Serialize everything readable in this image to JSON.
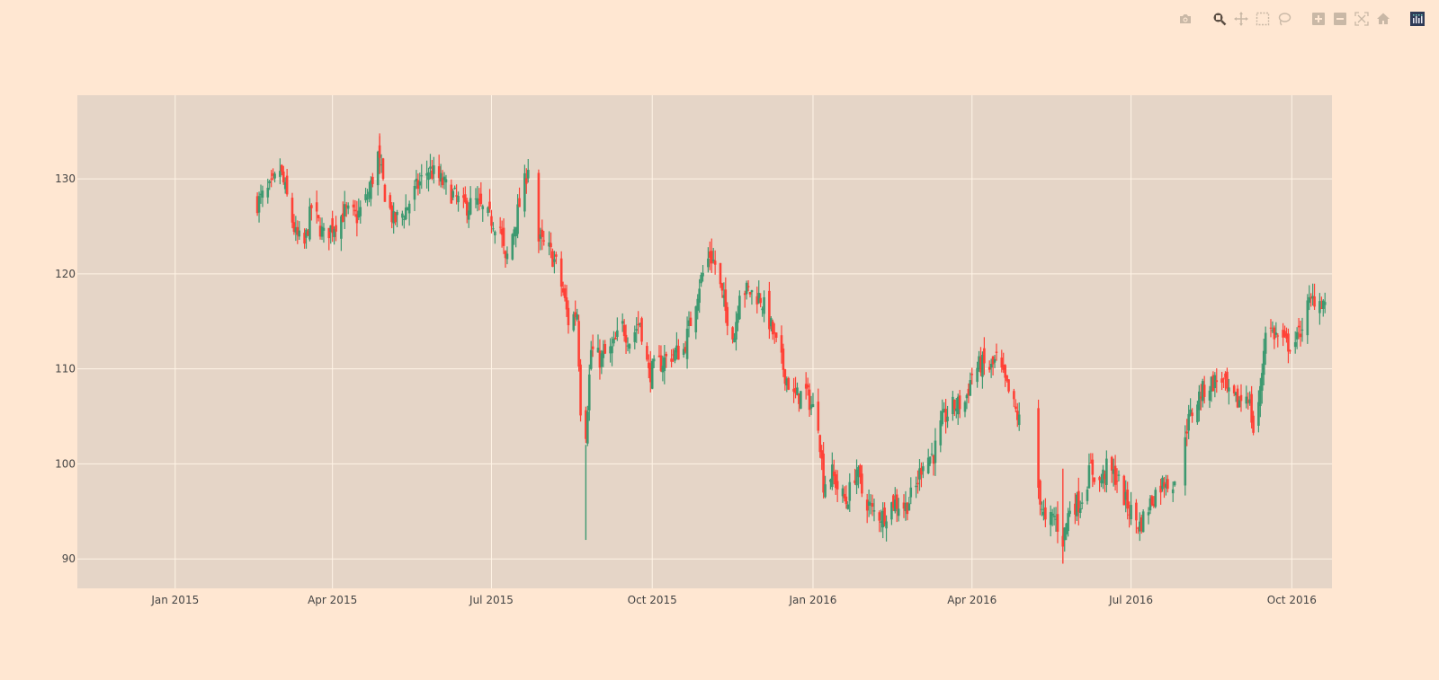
{
  "modebar": {
    "buttons": [
      {
        "name": "download-plot-png",
        "icon": "camera-icon",
        "active": false
      },
      {
        "name": "zoom",
        "icon": "zoom-icon",
        "active": true
      },
      {
        "name": "pan",
        "icon": "pan-icon",
        "active": false
      },
      {
        "name": "box-select",
        "icon": "box-select-icon",
        "active": false
      },
      {
        "name": "lasso-select",
        "icon": "lasso-icon",
        "active": false
      },
      {
        "name": "zoom-in",
        "icon": "zoom-in-icon",
        "active": false
      },
      {
        "name": "zoom-out",
        "icon": "zoom-out-icon",
        "active": false
      },
      {
        "name": "autoscale",
        "icon": "autoscale-icon",
        "active": false
      },
      {
        "name": "reset-axes",
        "icon": "home-icon",
        "active": false
      },
      {
        "name": "plotly-logo",
        "icon": "plotly-logo-icon",
        "active": false
      }
    ]
  },
  "colors": {
    "paper_bg": "#ffe7d2",
    "plot_bg": "#e5d5c7",
    "grid": "#fff4e6",
    "increasing": "#3D9970",
    "decreasing": "#FF4136",
    "modebar_icon": "#c9b8a6",
    "modebar_active": "#5b4e43",
    "logo_bg": "#2f3b57"
  },
  "chart_data": {
    "type": "candlestick",
    "title": "",
    "xlabel": "",
    "ylabel": "",
    "x_tick_labels": [
      "Jan 2015",
      "Apr 2015",
      "Jul 2015",
      "Oct 2015",
      "Jan 2016",
      "Apr 2016",
      "Jul 2016",
      "Oct 2016"
    ],
    "x_tick_dates": [
      "2015-01-01",
      "2015-04-01",
      "2015-07-01",
      "2015-10-01",
      "2016-01-01",
      "2016-04-01",
      "2016-07-01",
      "2016-10-01"
    ],
    "y_tick_labels": [
      "90",
      "100",
      "110",
      "120",
      "130"
    ],
    "y_ticks": [
      90,
      100,
      110,
      120,
      130
    ],
    "xlim": [
      "2014-11-06",
      "2016-10-24"
    ],
    "ylim": [
      86.9,
      138.8
    ],
    "grid": true,
    "legend": false,
    "increasing_color": "#3D9970",
    "decreasing_color": "#FF4136",
    "close_keyframes": [
      [
        "2015-02-17",
        127.5
      ],
      [
        "2015-02-25",
        129
      ],
      [
        "2015-03-02",
        131
      ],
      [
        "2015-03-06",
        128
      ],
      [
        "2015-03-11",
        124
      ],
      [
        "2015-03-16",
        123
      ],
      [
        "2015-03-20",
        127
      ],
      [
        "2015-03-27",
        124
      ],
      [
        "2015-04-01",
        125
      ],
      [
        "2015-04-08",
        126.5
      ],
      [
        "2015-04-15",
        126
      ],
      [
        "2015-04-22",
        128.5
      ],
      [
        "2015-04-27",
        132.5
      ],
      [
        "2015-05-01",
        128.5
      ],
      [
        "2015-05-06",
        125.5
      ],
      [
        "2015-05-12",
        126.5
      ],
      [
        "2015-05-19",
        129
      ],
      [
        "2015-05-26",
        131
      ],
      [
        "2015-06-01",
        130
      ],
      [
        "2015-06-08",
        128.5
      ],
      [
        "2015-06-15",
        127
      ],
      [
        "2015-06-22",
        127.5
      ],
      [
        "2015-06-29",
        126
      ],
      [
        "2015-07-06",
        125
      ],
      [
        "2015-07-09",
        121
      ],
      [
        "2015-07-14",
        125
      ],
      [
        "2015-07-20",
        129.5
      ],
      [
        "2015-07-22",
        131.5
      ],
      [
        "2015-07-28",
        123.5
      ],
      [
        "2015-08-03",
        122.5
      ],
      [
        "2015-08-07",
        121
      ],
      [
        "2015-08-11",
        118
      ],
      [
        "2015-08-14",
        115
      ],
      [
        "2015-08-19",
        116
      ],
      [
        "2015-08-21",
        106
      ],
      [
        "2015-08-24",
        103.5
      ],
      [
        "2015-08-27",
        112
      ],
      [
        "2015-09-01",
        111
      ],
      [
        "2015-09-08",
        112
      ],
      [
        "2015-09-14",
        114.5
      ],
      [
        "2015-09-18",
        113
      ],
      [
        "2015-09-24",
        115
      ],
      [
        "2015-09-29",
        109.5
      ],
      [
        "2015-10-05",
        110.5
      ],
      [
        "2015-10-12",
        111.5
      ],
      [
        "2015-10-19",
        112
      ],
      [
        "2015-10-23",
        115
      ],
      [
        "2015-10-28",
        119
      ],
      [
        "2015-11-03",
        122
      ],
      [
        "2015-11-06",
        121
      ],
      [
        "2015-11-12",
        116
      ],
      [
        "2015-11-17",
        113.5
      ],
      [
        "2015-11-20",
        118.5
      ],
      [
        "2015-11-27",
        118
      ],
      [
        "2015-12-02",
        117.5
      ],
      [
        "2015-12-07",
        115
      ],
      [
        "2015-12-11",
        112.5
      ],
      [
        "2015-12-16",
        109.5
      ],
      [
        "2015-12-21",
        107
      ],
      [
        "2015-12-28",
        107.5
      ],
      [
        "2016-01-04",
        104.5
      ],
      [
        "2016-01-07",
        98
      ],
      [
        "2016-01-12",
        99
      ],
      [
        "2016-01-15",
        97.5
      ],
      [
        "2016-01-20",
        96
      ],
      [
        "2016-01-26",
        99.5
      ],
      [
        "2016-01-29",
        97
      ],
      [
        "2016-02-04",
        95
      ],
      [
        "2016-02-10",
        94.5
      ],
      [
        "2016-02-16",
        96
      ],
      [
        "2016-02-23",
        95.5
      ],
      [
        "2016-02-29",
        97.5
      ],
      [
        "2016-03-04",
        100.5
      ],
      [
        "2016-03-10",
        101
      ],
      [
        "2016-03-15",
        104.5
      ],
      [
        "2016-03-21",
        106
      ],
      [
        "2016-03-28",
        106.5
      ],
      [
        "2016-04-01",
        109.5
      ],
      [
        "2016-04-06",
        110.5
      ],
      [
        "2016-04-12",
        110
      ],
      [
        "2016-04-15",
        111
      ],
      [
        "2016-04-20",
        108.5
      ],
      [
        "2016-04-26",
        105.5
      ],
      [
        "2016-04-28",
        104.5
      ],
      [
        "2016-05-09",
        97.5
      ],
      [
        "2016-05-13",
        93.5
      ],
      [
        "2016-05-18",
        94.5
      ],
      [
        "2016-05-23",
        92
      ],
      [
        "2016-05-27",
        95.5
      ],
      [
        "2016-06-02",
        96
      ],
      [
        "2016-06-08",
        99.5
      ],
      [
        "2016-06-13",
        98
      ],
      [
        "2016-06-17",
        99.5
      ],
      [
        "2016-06-23",
        98.5
      ],
      [
        "2016-06-28",
        96
      ],
      [
        "2016-07-01",
        95
      ],
      [
        "2016-07-06",
        93.5
      ],
      [
        "2016-07-11",
        95.5
      ],
      [
        "2016-07-15",
        97
      ],
      [
        "2016-07-21",
        98.5
      ],
      [
        "2016-07-26",
        97.5
      ],
      [
        "2016-08-01",
        103.5
      ],
      [
        "2016-08-05",
        105.5
      ],
      [
        "2016-08-10",
        107.5
      ],
      [
        "2016-08-16",
        108.5
      ],
      [
        "2016-08-22",
        109
      ],
      [
        "2016-08-26",
        107
      ],
      [
        "2016-08-31",
        106.5
      ],
      [
        "2016-09-06",
        107.5
      ],
      [
        "2016-09-09",
        103.5
      ],
      [
        "2016-09-13",
        107.5
      ],
      [
        "2016-09-16",
        114.5
      ],
      [
        "2016-09-22",
        113.5
      ],
      [
        "2016-09-28",
        112.5
      ],
      [
        "2016-10-04",
        113
      ],
      [
        "2016-10-10",
        116.5
      ],
      [
        "2016-10-14",
        117.5
      ],
      [
        "2016-10-20",
        117
      ]
    ],
    "gaps": [
      [
        "2015-07-23",
        "2015-07-27"
      ],
      [
        "2016-04-29",
        "2016-05-06"
      ],
      [
        "2016-07-27",
        "2016-07-29"
      ]
    ],
    "notable_points": {
      "max_high": {
        "date": "2015-04-28",
        "value": 134.5
      },
      "min_low": {
        "date": "2015-08-24",
        "value": 92
      },
      "min_low_2016": {
        "date": "2016-05-23",
        "value": 89.5
      }
    }
  }
}
